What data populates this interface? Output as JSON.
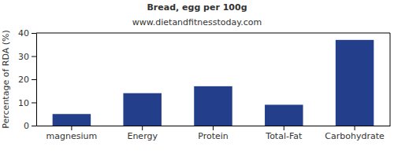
{
  "chart_data": {
    "type": "bar",
    "title": "Bread, egg per 100g",
    "subtitle": "www.dietandfitnesstoday.com",
    "y_label": "Percentage of RDA (%)",
    "categories": [
      "magnesium",
      "Energy",
      "Protein",
      "Total-Fat",
      "Carbohydrate"
    ],
    "values": [
      5,
      14,
      17,
      9,
      37
    ],
    "color": "#233e8b",
    "ylim": [
      0,
      40
    ],
    "yticks": [
      0,
      10,
      20,
      30,
      40
    ],
    "grid": false
  }
}
